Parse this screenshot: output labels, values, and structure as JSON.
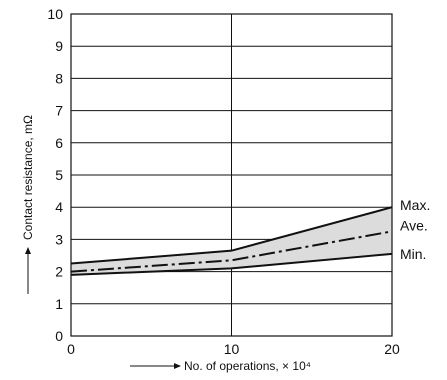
{
  "chart_data": {
    "type": "line",
    "xlabel": "No. of operations, × 10⁴",
    "ylabel": "Contact resistance, mΩ",
    "xlim": [
      0,
      20
    ],
    "ylim": [
      0,
      10
    ],
    "x_ticks": [
      0,
      10,
      20
    ],
    "y_ticks": [
      0,
      1,
      2,
      3,
      4,
      5,
      6,
      7,
      8,
      9,
      10
    ],
    "grid": "horizontal lines at every y tick, vertical line at x = 10",
    "band_fill": "#dcdcdc",
    "series": [
      {
        "name": "Max.",
        "style": "solid",
        "x": [
          0,
          10,
          20
        ],
        "y": [
          2.25,
          2.65,
          4.0
        ]
      },
      {
        "name": "Ave.",
        "style": "dash-dot",
        "x": [
          0,
          10,
          20
        ],
        "y": [
          2.0,
          2.35,
          3.25
        ]
      },
      {
        "name": "Min.",
        "style": "solid",
        "x": [
          0,
          10,
          20
        ],
        "y": [
          1.9,
          2.1,
          2.55
        ]
      }
    ]
  }
}
